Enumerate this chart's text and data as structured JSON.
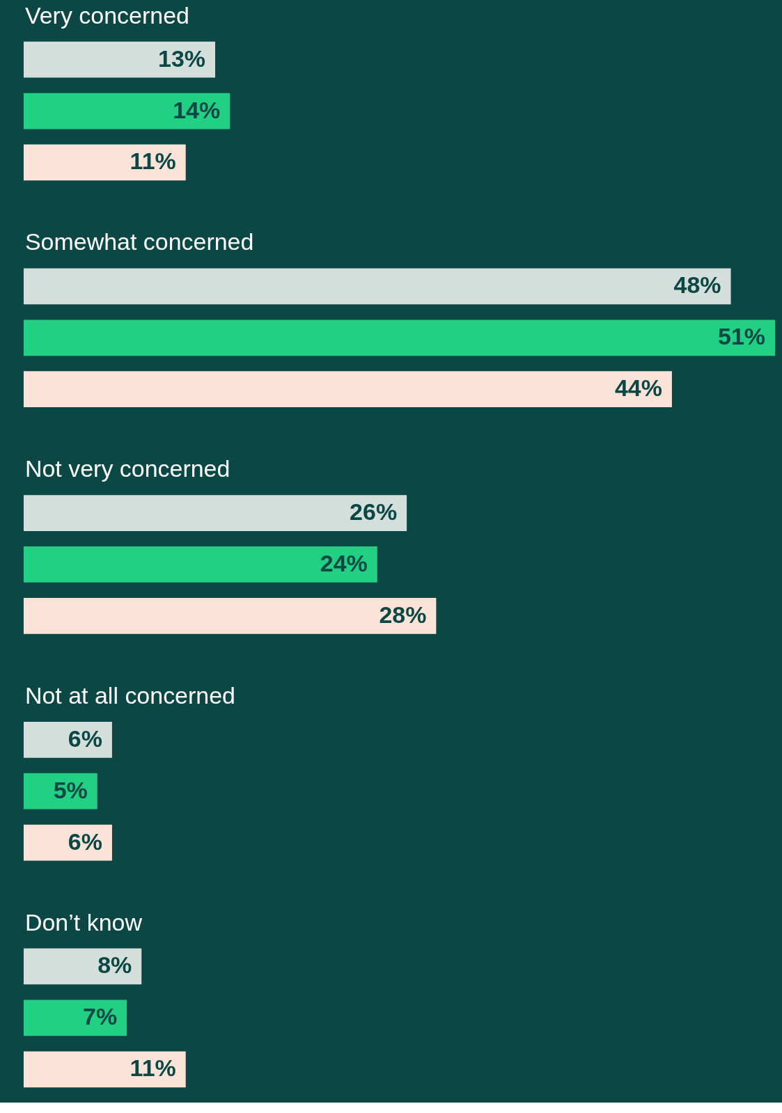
{
  "chart_data": {
    "type": "bar",
    "orientation": "horizontal",
    "categories": [
      "Very concerned",
      "Somewhat concerned",
      "Not very concerned",
      "Not at all concerned",
      "Don’t know"
    ],
    "series": [
      {
        "color": "#d4dedb",
        "values": [
          13,
          48,
          26,
          6,
          8
        ],
        "value_labels": [
          "13%",
          "48%",
          "26%",
          "6%",
          "8%"
        ]
      },
      {
        "color": "#22d083",
        "values": [
          14,
          51,
          24,
          5,
          7
        ],
        "value_labels": [
          "14%",
          "51%",
          "24%",
          "5%",
          "7%"
        ]
      },
      {
        "color": "#fce3d8",
        "values": [
          11,
          44,
          28,
          6,
          11
        ],
        "value_labels": [
          "11%",
          "44%",
          "28%",
          "6%",
          "11%"
        ]
      }
    ],
    "grid": false
  }
}
